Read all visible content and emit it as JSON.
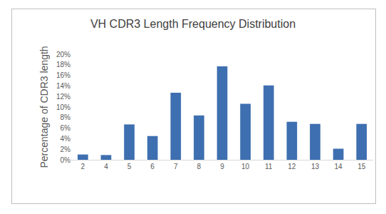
{
  "chart_data": {
    "type": "bar",
    "title": "VH CDR3 Length Frequency Distribution",
    "y_label": "Percentage of CDR3 length",
    "categories": [
      "2",
      "4",
      "5",
      "6",
      "7",
      "8",
      "9",
      "10",
      "11",
      "12",
      "13",
      "14",
      "15"
    ],
    "values": [
      1.0,
      0.9,
      6.7,
      4.5,
      12.7,
      8.4,
      17.7,
      10.6,
      14.1,
      7.2,
      6.8,
      2.1,
      6.8
    ],
    "color": "#3e6fb0",
    "ylim": [
      0,
      20
    ],
    "yticks": [
      {
        "value": 0,
        "label": "0%"
      },
      {
        "value": 2,
        "label": "2%"
      },
      {
        "value": 4,
        "label": "4%"
      },
      {
        "value": 6,
        "label": "6%"
      },
      {
        "value": 8,
        "label": "8%"
      },
      {
        "value": 10,
        "label": "10%"
      },
      {
        "value": 12,
        "label": "12%"
      },
      {
        "value": 14,
        "label": "14%"
      },
      {
        "value": 16,
        "label": "16%"
      },
      {
        "value": 18,
        "label": "18%"
      },
      {
        "value": 20,
        "label": "20%"
      }
    ],
    "grid": false
  }
}
